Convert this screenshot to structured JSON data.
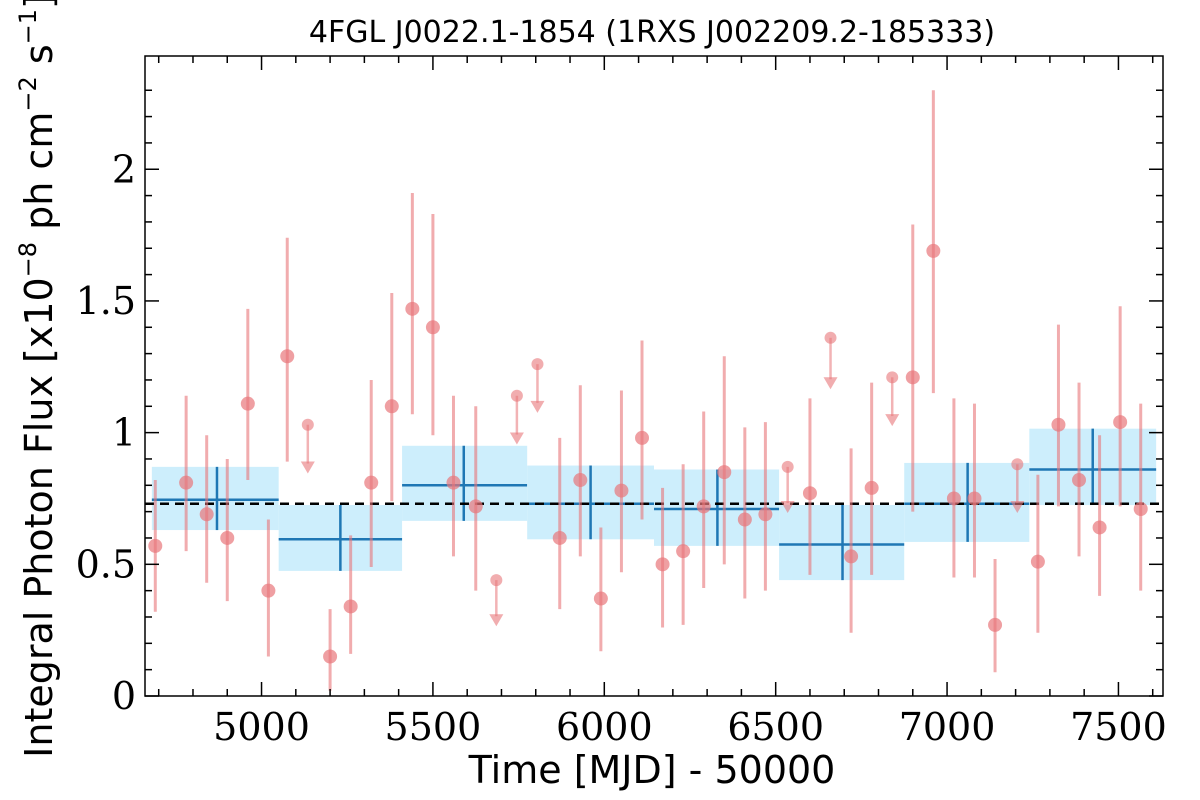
{
  "chart_data": {
    "type": "scatter",
    "title": "4FGL J0022.1-1854 (1RXS J002209.2-185333)",
    "xlabel": "Time [MJD] - 50000",
    "ylabel_prefix": "Integral Photon Flux [x10",
    "ylabel_exp1": "−8",
    "ylabel_mid": " ph cm",
    "ylabel_exp2": "−2",
    "ylabel_mid2": " s",
    "ylabel_exp3": "−1",
    "ylabel_suffix": "]",
    "xlim": [
      4660,
      7630
    ],
    "ylim": [
      0,
      2.43
    ],
    "x_ticks": [
      5000,
      5500,
      6000,
      6500,
      7000,
      7500
    ],
    "x_tick_labels": [
      "5000",
      "5500",
      "6000",
      "6500",
      "7000",
      "7500"
    ],
    "y_ticks": [
      0,
      0.5,
      1,
      1.5,
      2
    ],
    "y_tick_labels": [
      "0",
      "0.5",
      "1",
      "1.5",
      "2"
    ],
    "mean_flux": 0.73,
    "colors": {
      "points": "#e8767a",
      "bins": "#1f77b4",
      "bin_fill": "#cdeefc",
      "mean": "#000000"
    },
    "points": [
      {
        "x": 4690,
        "y": 0.57,
        "lo": 0.32,
        "hi": 0.82
      },
      {
        "x": 4780,
        "y": 0.81,
        "lo": 0.55,
        "hi": 1.14
      },
      {
        "x": 4840,
        "y": 0.69,
        "lo": 0.43,
        "hi": 0.99
      },
      {
        "x": 4900,
        "y": 0.6,
        "lo": 0.36,
        "hi": 0.9
      },
      {
        "x": 4960,
        "y": 1.11,
        "lo": 0.82,
        "hi": 1.47
      },
      {
        "x": 5020,
        "y": 0.4,
        "lo": 0.15,
        "hi": 0.67
      },
      {
        "x": 5075,
        "y": 1.29,
        "lo": 0.89,
        "hi": 1.74
      },
      {
        "x": 5200,
        "y": 0.15,
        "lo": 0.02,
        "hi": 0.33
      },
      {
        "x": 5260,
        "y": 0.34,
        "lo": 0.16,
        "hi": 0.61
      },
      {
        "x": 5320,
        "y": 0.81,
        "lo": 0.49,
        "hi": 1.2
      },
      {
        "x": 5380,
        "y": 1.1,
        "lo": 0.74,
        "hi": 1.53
      },
      {
        "x": 5440,
        "y": 1.47,
        "lo": 1.07,
        "hi": 1.91
      },
      {
        "x": 5500,
        "y": 1.4,
        "lo": 0.99,
        "hi": 1.83
      },
      {
        "x": 5560,
        "y": 0.81,
        "lo": 0.53,
        "hi": 1.14
      },
      {
        "x": 5625,
        "y": 0.72,
        "lo": 0.4,
        "hi": 1.1
      },
      {
        "x": 5870,
        "y": 0.6,
        "lo": 0.33,
        "hi": 0.98
      },
      {
        "x": 5930,
        "y": 0.82,
        "lo": 0.53,
        "hi": 1.18
      },
      {
        "x": 5990,
        "y": 0.37,
        "lo": 0.17,
        "hi": 0.64
      },
      {
        "x": 6050,
        "y": 0.78,
        "lo": 0.47,
        "hi": 1.16
      },
      {
        "x": 6110,
        "y": 0.98,
        "lo": 0.67,
        "hi": 1.35
      },
      {
        "x": 6170,
        "y": 0.5,
        "lo": 0.26,
        "hi": 0.79
      },
      {
        "x": 6230,
        "y": 0.55,
        "lo": 0.27,
        "hi": 0.88
      },
      {
        "x": 6290,
        "y": 0.72,
        "lo": 0.41,
        "hi": 1.08
      },
      {
        "x": 6350,
        "y": 0.85,
        "lo": 0.5,
        "hi": 1.29
      },
      {
        "x": 6410,
        "y": 0.67,
        "lo": 0.37,
        "hi": 1.02
      },
      {
        "x": 6470,
        "y": 0.69,
        "lo": 0.4,
        "hi": 1.04
      },
      {
        "x": 6600,
        "y": 0.77,
        "lo": 0.46,
        "hi": 1.13
      },
      {
        "x": 6720,
        "y": 0.53,
        "lo": 0.24,
        "hi": 0.94
      },
      {
        "x": 6780,
        "y": 0.79,
        "lo": 0.46,
        "hi": 1.19
      },
      {
        "x": 6900,
        "y": 1.21,
        "lo": 0.7,
        "hi": 1.79
      },
      {
        "x": 6960,
        "y": 1.69,
        "lo": 1.15,
        "hi": 2.3
      },
      {
        "x": 7020,
        "y": 0.75,
        "lo": 0.45,
        "hi": 1.13
      },
      {
        "x": 7080,
        "y": 0.75,
        "lo": 0.45,
        "hi": 1.11
      },
      {
        "x": 7140,
        "y": 0.27,
        "lo": 0.09,
        "hi": 0.52
      },
      {
        "x": 7265,
        "y": 0.51,
        "lo": 0.24,
        "hi": 0.84
      },
      {
        "x": 7325,
        "y": 1.03,
        "lo": 0.72,
        "hi": 1.41
      },
      {
        "x": 7385,
        "y": 0.82,
        "lo": 0.53,
        "hi": 1.19
      },
      {
        "x": 7445,
        "y": 0.64,
        "lo": 0.38,
        "hi": 0.99
      },
      {
        "x": 7505,
        "y": 1.04,
        "lo": 0.72,
        "hi": 1.48
      },
      {
        "x": 7565,
        "y": 0.71,
        "lo": 0.4,
        "hi": 1.11
      }
    ],
    "upper_limits": [
      {
        "x": 5135,
        "y": 1.03,
        "arrow_to": 0.86
      },
      {
        "x": 5685,
        "y": 0.44,
        "arrow_to": 0.28
      },
      {
        "x": 5745,
        "y": 1.14,
        "arrow_to": 0.97
      },
      {
        "x": 5805,
        "y": 1.26,
        "arrow_to": 1.09
      },
      {
        "x": 6535,
        "y": 0.87,
        "arrow_to": 0.71
      },
      {
        "x": 6660,
        "y": 1.36,
        "arrow_to": 1.18
      },
      {
        "x": 6840,
        "y": 1.21,
        "arrow_to": 1.04
      },
      {
        "x": 7205,
        "y": 0.88,
        "arrow_to": 0.71
      }
    ],
    "bins": [
      {
        "x0": 4680,
        "x1": 5050,
        "y": 0.745,
        "lo": 0.63,
        "hi": 0.87,
        "xc": 4870
      },
      {
        "x0": 5050,
        "x1": 5410,
        "y": 0.595,
        "lo": 0.475,
        "hi": 0.725,
        "xc": 5230
      },
      {
        "x0": 5410,
        "x1": 5775,
        "y": 0.8,
        "lo": 0.665,
        "hi": 0.95,
        "xc": 5590
      },
      {
        "x0": 5775,
        "x1": 6145,
        "y": 0.73,
        "lo": 0.595,
        "hi": 0.875,
        "xc": 5960
      },
      {
        "x0": 6145,
        "x1": 6510,
        "y": 0.71,
        "lo": 0.57,
        "hi": 0.86,
        "xc": 6330
      },
      {
        "x0": 6510,
        "x1": 6875,
        "y": 0.575,
        "lo": 0.44,
        "hi": 0.725,
        "xc": 6695
      },
      {
        "x0": 6875,
        "x1": 7240,
        "y": 0.73,
        "lo": 0.585,
        "hi": 0.885,
        "xc": 7060
      },
      {
        "x0": 7240,
        "x1": 7610,
        "y": 0.86,
        "lo": 0.725,
        "hi": 1.015,
        "xc": 7425
      }
    ]
  }
}
